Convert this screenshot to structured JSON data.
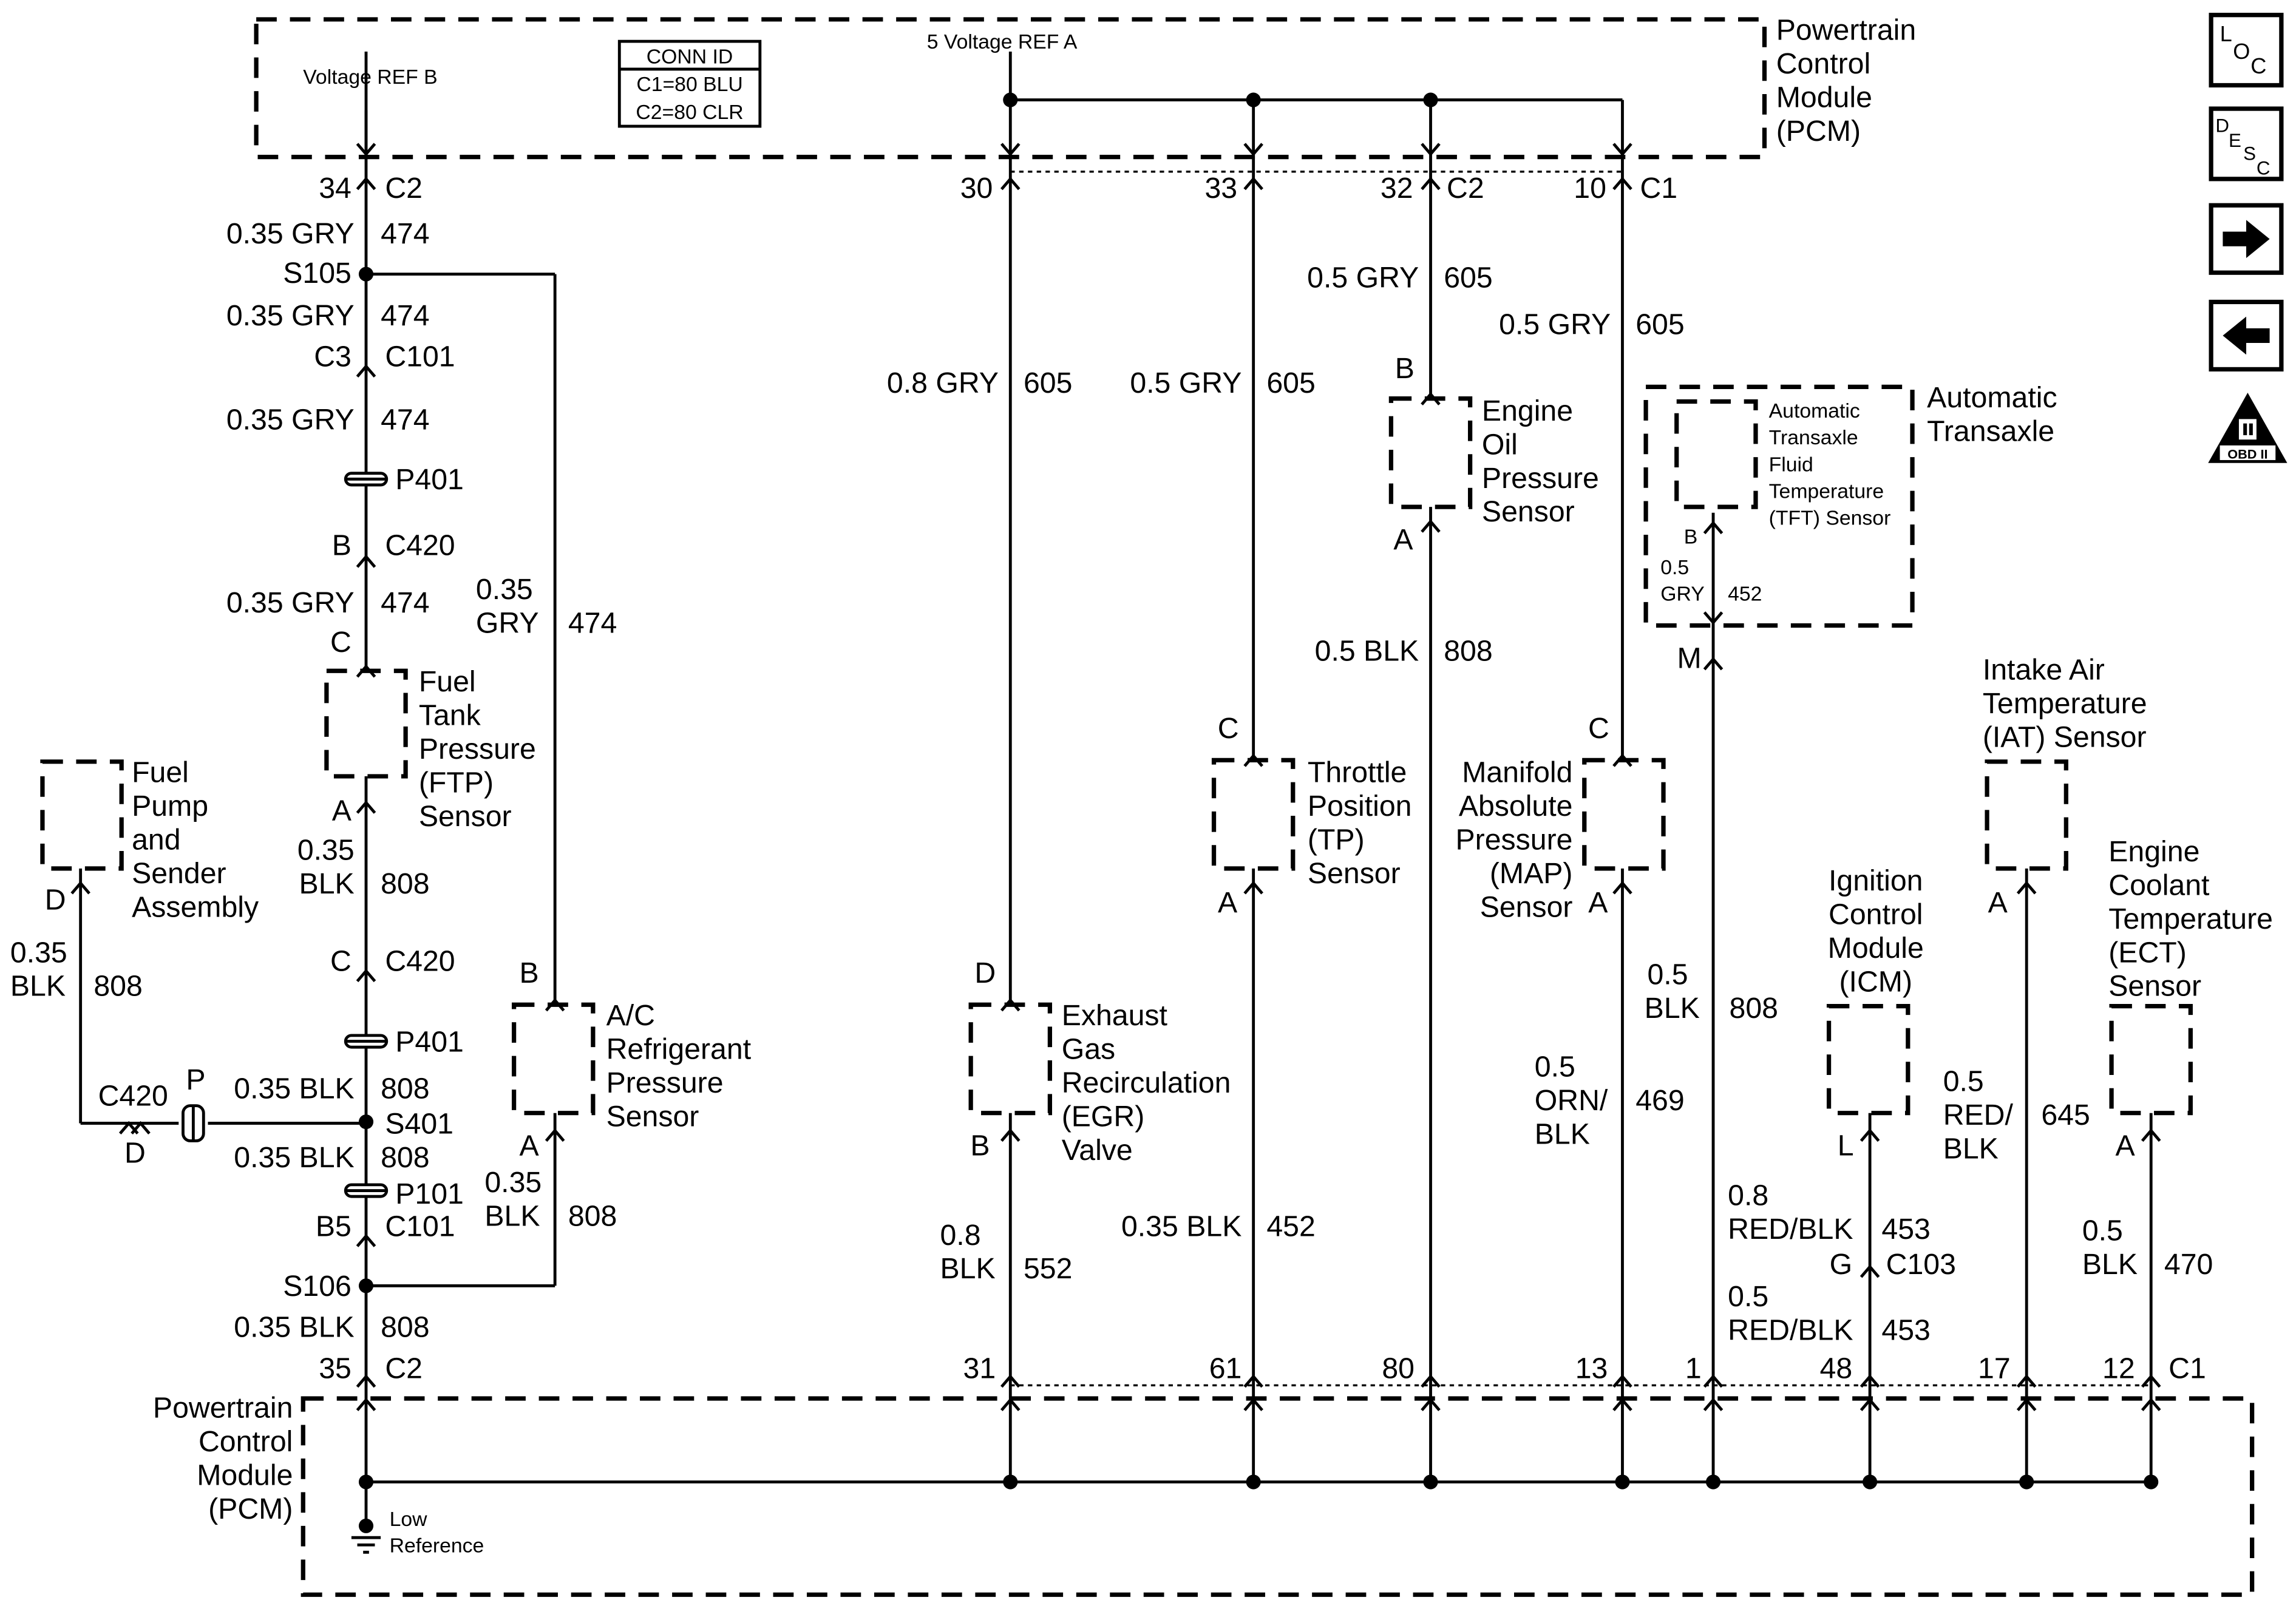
{
  "pcm_top": {
    "name_lines": [
      "Powertrain",
      "Control",
      "Module",
      "(PCM)"
    ],
    "voltage_ref_b": "Voltage REF B",
    "voltage_ref_a": "5 Voltage REF A",
    "conn_id": [
      "CONN ID",
      "C1=80 BLU",
      "C2=80 CLR"
    ],
    "pins": {
      "p34": "34",
      "c2a": "C2",
      "p30": "30",
      "p33": "33",
      "p32": "32",
      "c2b": "C2",
      "p10": "10",
      "c1": "C1"
    }
  },
  "left_circuit": {
    "w1": [
      "0.35 GRY",
      "474"
    ],
    "s105": "S105",
    "w2": [
      "0.35 GRY",
      "474"
    ],
    "c101_top": [
      "C3",
      "C101"
    ],
    "w3": [
      "0.35 GRY",
      "474"
    ],
    "p401_top": "P401",
    "c420_top": [
      "B",
      "C420"
    ],
    "w4": [
      "0.35 GRY",
      "474"
    ],
    "ftp_pin_c": "C",
    "ac_wire": [
      "0.35",
      "GRY",
      "474"
    ],
    "ftp_pin_a": "A",
    "w5": [
      "0.35",
      "BLK",
      "808"
    ],
    "c420_mid": [
      "C",
      "C420"
    ],
    "p401_mid": "P401",
    "w6": [
      "0.35 BLK",
      "808"
    ],
    "s401": "S401",
    "w7": [
      "0.35 BLK",
      "808"
    ],
    "p101": "P101",
    "c101_bot": [
      "B5",
      "C101"
    ],
    "s106": "S106",
    "w8": [
      "0.35 BLK",
      "808"
    ],
    "pins": [
      "35",
      "C2"
    ]
  },
  "ftp_sensor": {
    "name_lines": [
      "Fuel",
      "Tank",
      "Pressure",
      "(FTP)",
      "Sensor"
    ]
  },
  "ac_sensor": {
    "name_lines": [
      "A/C",
      "Refrigerant",
      "Pressure",
      "Sensor"
    ],
    "pin_top": "B",
    "pin_bottom": "A",
    "wire": [
      "0.35",
      "BLK",
      "808"
    ]
  },
  "fuel_pump": {
    "name_lines": [
      "Fuel",
      "Pump",
      "and",
      "Sender",
      "Assembly"
    ],
    "pin": "D",
    "wire": [
      "0.35",
      "BLK",
      "808"
    ],
    "conn": [
      "C420",
      "D",
      "P"
    ]
  },
  "egr_valve": {
    "name_lines": [
      "Exhaust",
      "Gas",
      "Recirculation",
      "(EGR)",
      "Valve"
    ],
    "wire_top": [
      "0.8 GRY",
      "605"
    ],
    "pin_top": "D",
    "pin_bottom": "B",
    "wire_bottom": [
      "0.8",
      "BLK",
      "552"
    ],
    "pcm_pin": "31"
  },
  "tp_sensor": {
    "name_lines": [
      "Throttle",
      "Position",
      "(TP)",
      "Sensor"
    ],
    "wire_top": [
      "0.5 GRY",
      "605"
    ],
    "pin_top": "C",
    "pin_bottom": "A",
    "wire_bottom": [
      "0.35 BLK",
      "452"
    ],
    "pcm_pin": "61"
  },
  "oil_sensor": {
    "name_lines": [
      "Engine",
      "Oil",
      "Pressure",
      "Sensor"
    ],
    "wire_top": [
      "0.5 GRY",
      "605"
    ],
    "pin_top": "B",
    "pin_bottom": "A",
    "wire_bottom": [
      "0.5 BLK",
      "808"
    ],
    "pcm_pin": "80"
  },
  "map_sensor": {
    "name_lines": [
      "Manifold",
      "Absolute",
      "Pressure",
      "(MAP)",
      "Sensor"
    ],
    "wire_top": [
      "0.5 GRY",
      "605"
    ],
    "pin_top": "C",
    "pin_bottom": "A",
    "wire_bottom": [
      "0.5",
      "ORN/",
      "BLK",
      "469"
    ],
    "pcm_pin": "13"
  },
  "tft_sensor": {
    "name_lines": [
      "Automatic",
      "Transaxle",
      "Fluid",
      "Temperature",
      "(TFT) Sensor"
    ],
    "assembly_lines": [
      "Automatic",
      "Transaxle"
    ],
    "pin_b": "B",
    "wire_inner": [
      "0.5",
      "GRY",
      "452"
    ],
    "pin_m": "M",
    "wire_bottom": [
      "0.5",
      "BLK",
      "808"
    ],
    "pcm_pin": "1"
  },
  "icm": {
    "name_lines": [
      "Ignition",
      "Control",
      "Module",
      "(ICM)"
    ],
    "pin": "L",
    "wire1": [
      "0.8",
      "RED/BLK",
      "453"
    ],
    "c103": [
      "G",
      "C103"
    ],
    "wire2": [
      "0.5",
      "RED/BLK",
      "453"
    ],
    "pcm_pin": "48"
  },
  "iat_sensor": {
    "name_lines": [
      "Intake Air",
      "Temperature",
      "(IAT) Sensor"
    ],
    "pin": "A",
    "wire": [
      "0.5",
      "RED/",
      "BLK",
      "645"
    ],
    "pcm_pin": "17"
  },
  "ect_sensor": {
    "name_lines": [
      "Engine",
      "Coolant",
      "Temperature",
      "(ECT)",
      "Sensor"
    ],
    "pin": "A",
    "wire": [
      "0.5",
      "BLK",
      "470"
    ],
    "pcm_pin": "12",
    "conn": "C1"
  },
  "pcm_bottom": {
    "name_lines": [
      "Powertrain",
      "Control",
      "Module",
      "(PCM)"
    ],
    "low_reference": [
      "Low",
      "Reference"
    ]
  },
  "nav_icons": {
    "loc": "LOC",
    "desc": "DESC",
    "next": "arrow-right-icon",
    "prev": "arrow-left-icon",
    "obd": "OBD II"
  }
}
